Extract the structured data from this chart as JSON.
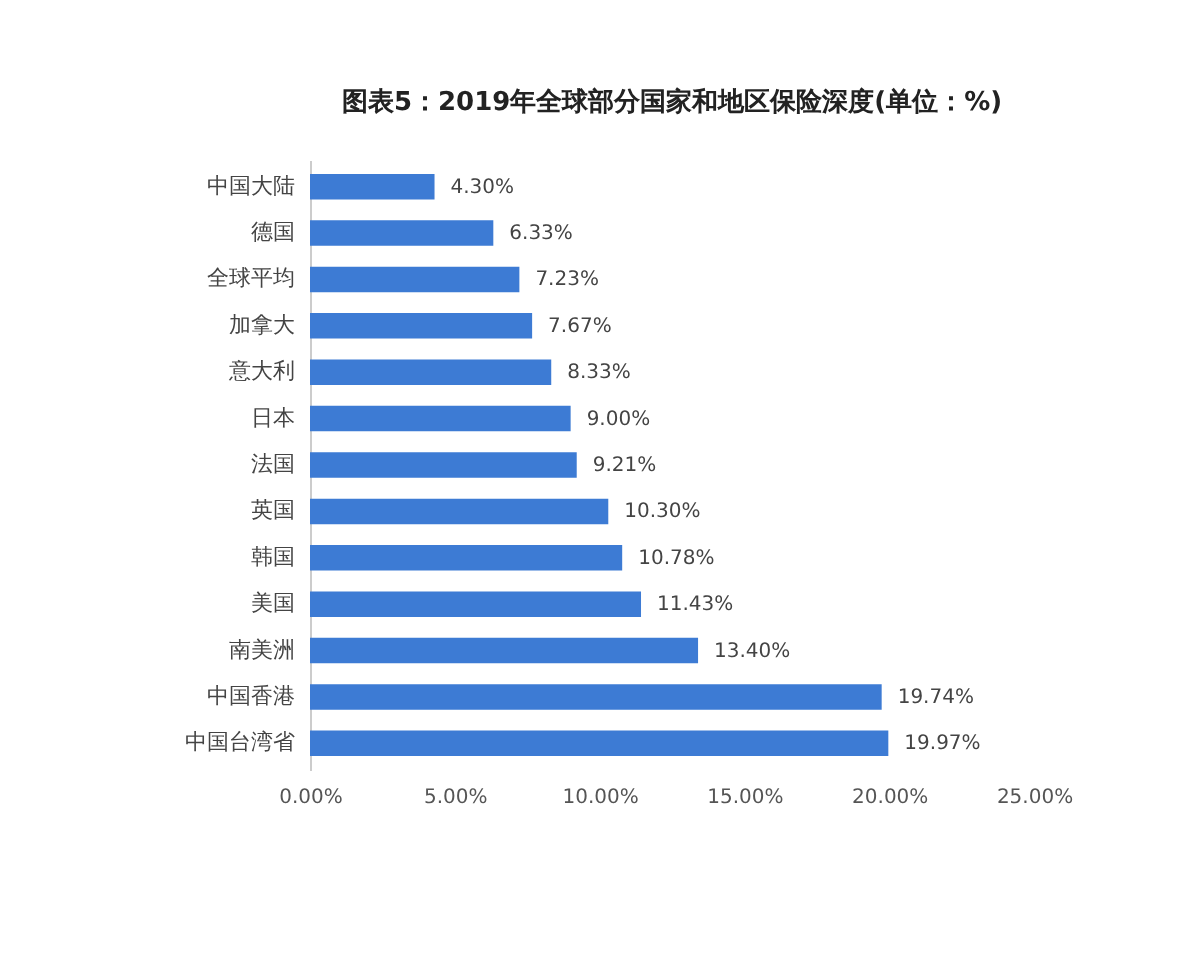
{
  "chart_data": {
    "type": "bar",
    "orientation": "horizontal",
    "title": "图表5：2019年全球部分国家和地区保险深度(单位：%)",
    "categories": [
      "中国大陆",
      "德国",
      "全球平均",
      "加拿大",
      "意大利",
      "日本",
      "法国",
      "英国",
      "韩国",
      "美国",
      "南美洲",
      "中国香港",
      "中国台湾省"
    ],
    "values": [
      4.3,
      6.33,
      7.23,
      7.67,
      8.33,
      9.0,
      9.21,
      10.3,
      10.78,
      11.43,
      13.4,
      19.74,
      19.97
    ],
    "value_labels": [
      "4.30%",
      "6.33%",
      "7.23%",
      "7.67%",
      "8.33%",
      "9.00%",
      "9.21%",
      "10.30%",
      "10.78%",
      "11.43%",
      "13.40%",
      "19.74%",
      "19.97%"
    ],
    "color": "#3d7bd4",
    "xlim": [
      0,
      25
    ],
    "xticks": [
      {
        "value": 0,
        "label": "0.00%"
      },
      {
        "value": 5,
        "label": "5.00%"
      },
      {
        "value": 10,
        "label": "10.00%"
      },
      {
        "value": 15,
        "label": "15.00%"
      },
      {
        "value": 20,
        "label": "20.00%"
      },
      {
        "value": 25,
        "label": "25.00%"
      }
    ]
  }
}
